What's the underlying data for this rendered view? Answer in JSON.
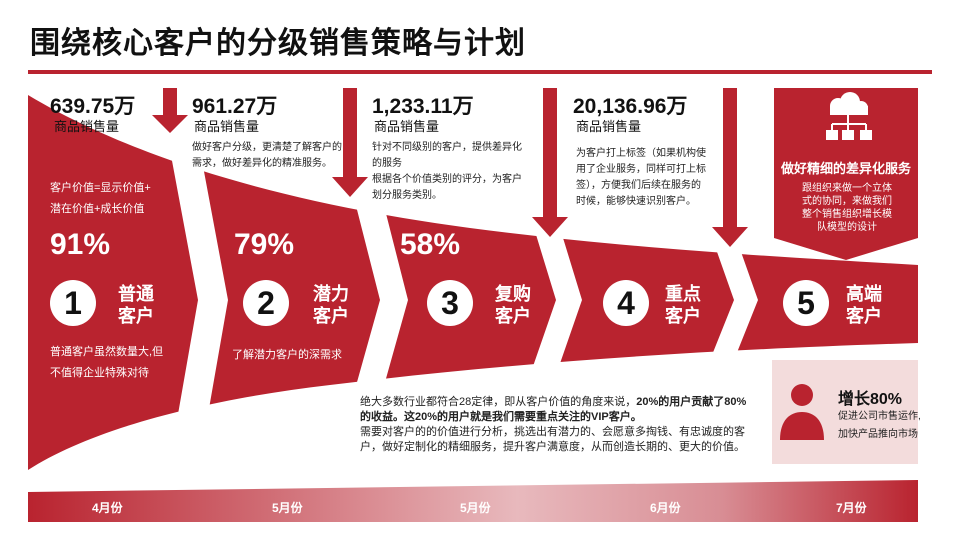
{
  "title": "围绕核心客户的分级销售策略与计划",
  "colors": {
    "accent": "#b9232f",
    "accent_light": "#f3dcdc",
    "text": "#222222"
  },
  "quantities": [
    {
      "value": "639.75万",
      "label": "商品销售量"
    },
    {
      "value": "961.27万",
      "label": "商品销售量"
    },
    {
      "value": "1,233.11万",
      "label": "商品销售量"
    },
    {
      "value": "20,136.96万",
      "label": "商品销售量"
    }
  ],
  "descriptions": [
    "做好客户分级，更清楚了解客户的需求，做好差异化的精准服务。",
    "针对不同级别的客户，提供差异化的服务\n根据各个价值类别的评分，为客户划分服务类别。",
    "为客户打上标签（如果机构使用了企业服务，同样可打上标签），方便我们后续在服务的时候，能够快速识别客户。"
  ],
  "value_formula": [
    "客户价值=显示价值+",
    "潜在价值+成长价值"
  ],
  "percents": [
    "91%",
    "79%",
    "58%"
  ],
  "stages": [
    {
      "num": "1",
      "line1": "普通",
      "line2": "客户"
    },
    {
      "num": "2",
      "line1": "潜力",
      "line2": "客户"
    },
    {
      "num": "3",
      "line1": "复购",
      "line2": "客户"
    },
    {
      "num": "4",
      "line1": "重点",
      "line2": "客户"
    },
    {
      "num": "5",
      "line1": "高端",
      "line2": "客户"
    }
  ],
  "stage_notes": {
    "stage1": [
      "普通客户虽然数量大,但",
      "不值得企业特殊对待"
    ],
    "stage2": "了解潜力客户的深需求"
  },
  "center_text": {
    "part1": "绝大多数行业都符合28定律，即从客户价值的角度来说，",
    "bold1": "20%的用户贡献了80%的收益。这20%的用户就是我们需要重点关注的VIP客户。",
    "part2": "需要对客户的的价值进行分析，挑选出有潜力的、会愿意多掏钱、有忠诚度的客户，做好定制化的精细服务，提升客户满意度，从而创造长期的、更大的价值。"
  },
  "service": {
    "icon": "cloud-network-icon",
    "title": "做好精细的差异化服务",
    "desc": "跟组织来做一个立体式的协同，来做我们整个销售组织增长模队模型的设计"
  },
  "growth": {
    "icon": "user-icon",
    "title": "增长80%",
    "line1": "促进公司市售运作,",
    "line2": "加快产品推向市场"
  },
  "months": [
    "4月份",
    "5月份",
    "5月份",
    "6月份",
    "7月份"
  ]
}
